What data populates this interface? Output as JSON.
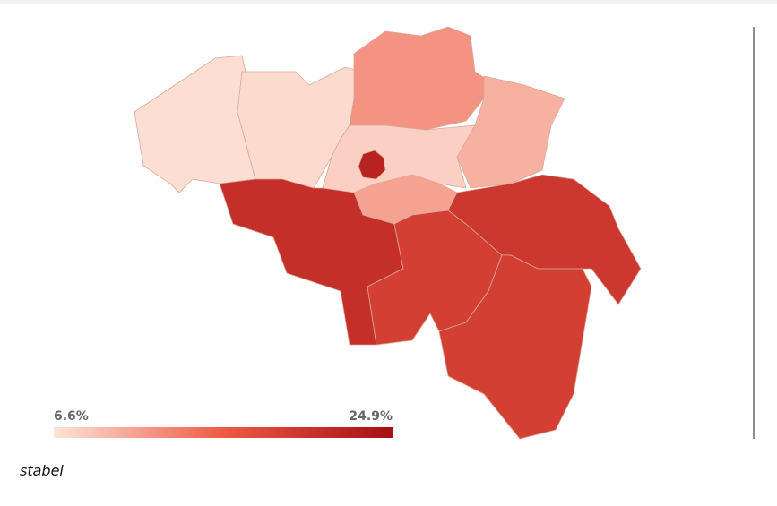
{
  "map": {
    "type": "choropleth",
    "legend": {
      "min": {
        "value": 6.6,
        "label": "6.6%"
      },
      "max": {
        "value": 24.9,
        "label": "24.9%"
      },
      "colors": [
        "#fde4d8",
        "#ee5a45",
        "#a50f15"
      ]
    },
    "values": [
      7.0,
      7.2,
      12.0,
      10.0,
      8.0,
      22.5,
      11.0,
      21.0,
      19.0,
      20.0,
      19.0
    ],
    "caption": "stabel"
  }
}
